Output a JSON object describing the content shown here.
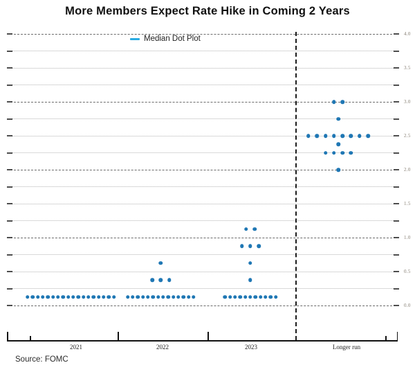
{
  "title": "More Members Expect Rate Hike in Coming 2 Years",
  "legend": {
    "label": "Median Dot Plot",
    "swatch_color": "#29abe2"
  },
  "source": "Source: FOMC",
  "colors": {
    "dot": "#1f77b4",
    "axis": "#111111",
    "grid_major": "#6a6a6a",
    "grid_minor": "#b4b4b4",
    "grid_cap": "#4d4d4d",
    "ytick_label": "#857e72",
    "xtick_label": "#222222"
  },
  "chart_data": {
    "type": "scatter",
    "subtype": "fomc-dot-plot",
    "title": "More Members Expect Rate Hike in Coming 2 Years",
    "xlabel": "",
    "ylabel": "",
    "ylim": [
      0.0,
      4.0
    ],
    "yticks": [
      0.0,
      0.5,
      1.0,
      1.5,
      2.0,
      2.5,
      3.0,
      3.5,
      4.0
    ],
    "grid_step": 0.25,
    "grid": true,
    "legend_entries": [
      "Median Dot Plot"
    ],
    "legend_position": "top-center-inside",
    "categories": [
      "2021",
      "2022",
      "2023",
      "Longer run"
    ],
    "groups": [
      {
        "category": "2021",
        "dots": [
          {
            "rate": 0.125,
            "count": 18
          }
        ]
      },
      {
        "category": "2022",
        "dots": [
          {
            "rate": 0.125,
            "count": 14
          },
          {
            "rate": 0.375,
            "count": 3
          },
          {
            "rate": 0.625,
            "count": 1
          }
        ]
      },
      {
        "category": "2023",
        "dots": [
          {
            "rate": 0.125,
            "count": 11
          },
          {
            "rate": 0.375,
            "count": 1
          },
          {
            "rate": 0.625,
            "count": 1
          },
          {
            "rate": 0.875,
            "count": 3
          },
          {
            "rate": 1.125,
            "count": 2
          }
        ]
      },
      {
        "category": "Longer run",
        "dots": [
          {
            "rate": 2.0,
            "count": 1
          },
          {
            "rate": 2.25,
            "count": 4
          },
          {
            "rate": 2.375,
            "count": 1
          },
          {
            "rate": 2.5,
            "count": 8
          },
          {
            "rate": 2.75,
            "count": 1
          },
          {
            "rate": 3.0,
            "count": 2
          }
        ]
      }
    ],
    "annotations": [
      "dashed vertical separator between 2023 and Longer run"
    ]
  }
}
